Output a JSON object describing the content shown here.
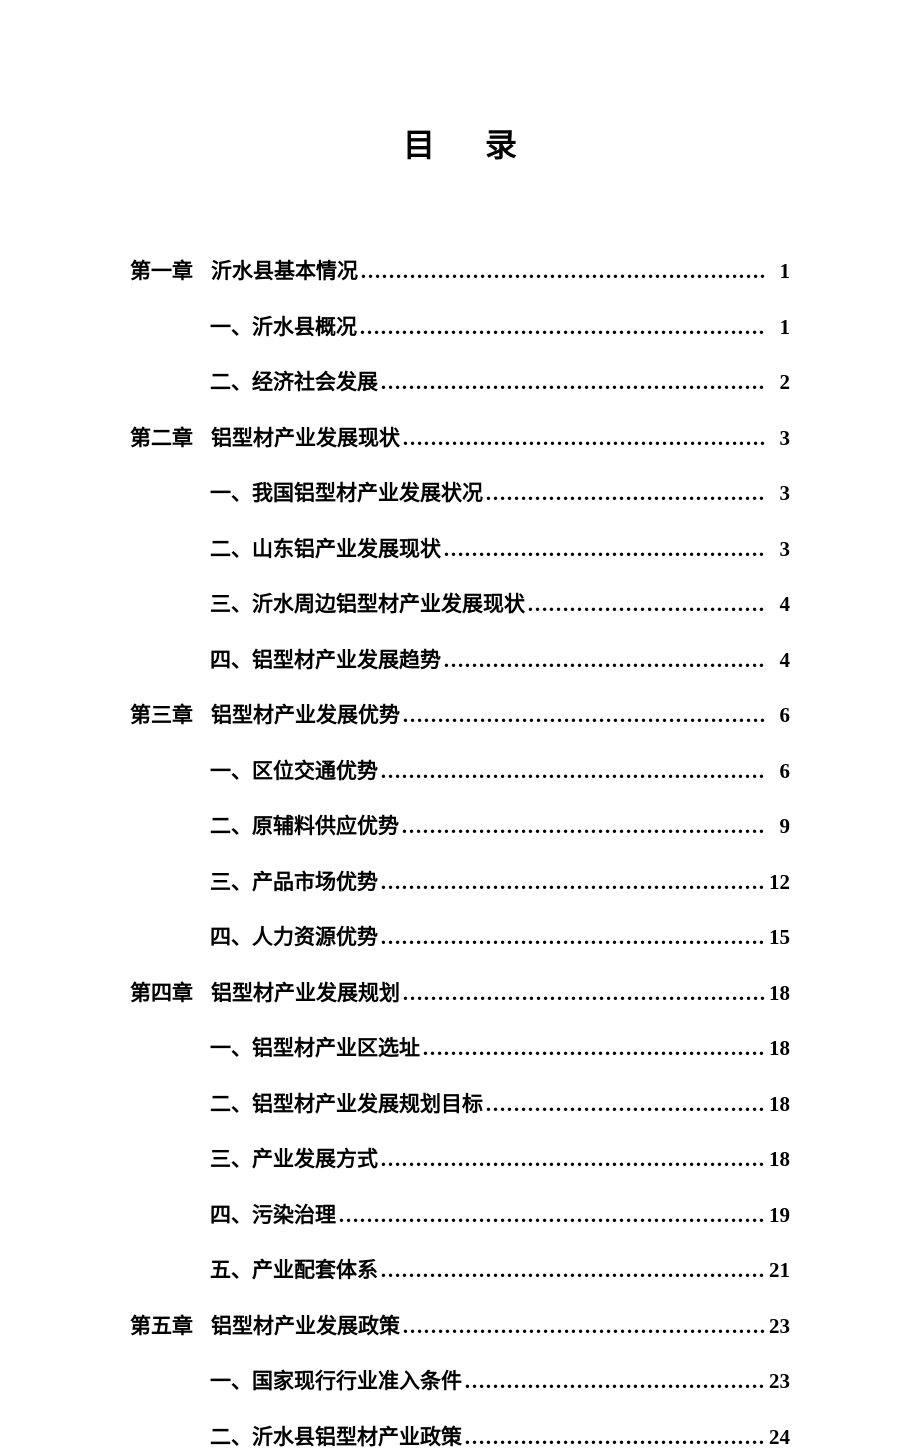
{
  "page_title": "目录",
  "text_color": "#000000",
  "background_color": "#ffffff",
  "title_fontsize": 32,
  "row_fontsize": 21,
  "chapters": [
    {
      "label": "第一章",
      "title": "沂水县基本情况",
      "page": "1",
      "subs": [
        {
          "title": "一、沂水县概况",
          "page": "1"
        },
        {
          "title": "二、经济社会发展",
          "page": "2"
        }
      ]
    },
    {
      "label": "第二章",
      "title": "铝型材产业发展现状",
      "page": "3",
      "subs": [
        {
          "title": "一、我国铝型材产业发展状况",
          "page": "3"
        },
        {
          "title": "二、山东铝产业发展现状",
          "page": "3"
        },
        {
          "title": "三、沂水周边铝型材产业发展现状",
          "page": "4"
        },
        {
          "title": "四、铝型材产业发展趋势",
          "page": "4"
        }
      ]
    },
    {
      "label": "第三章",
      "title": "铝型材产业发展优势",
      "page": "6",
      "subs": [
        {
          "title": "一、区位交通优势",
          "page": "6"
        },
        {
          "title": "二、原辅料供应优势",
          "page": "9"
        },
        {
          "title": "三、产品市场优势",
          "page": "12"
        },
        {
          "title": "四、人力资源优势",
          "page": "15"
        }
      ]
    },
    {
      "label": "第四章",
      "title": "铝型材产业发展规划",
      "page": "18",
      "subs": [
        {
          "title": "一、铝型材产业区选址",
          "page": "18"
        },
        {
          "title": "二、铝型材产业发展规划目标",
          "page": "18"
        },
        {
          "title": "三、产业发展方式",
          "page": "18"
        },
        {
          "title": "四、污染治理",
          "page": "19"
        },
        {
          "title": "五、产业配套体系",
          "page": "21"
        }
      ]
    },
    {
      "label": "第五章",
      "title": "铝型材产业发展政策",
      "page": "23",
      "subs": [
        {
          "title": "一、国家现行行业准入条件",
          "page": "23"
        },
        {
          "title": "二、沂水县铝型材产业政策",
          "page": "24"
        }
      ]
    }
  ]
}
